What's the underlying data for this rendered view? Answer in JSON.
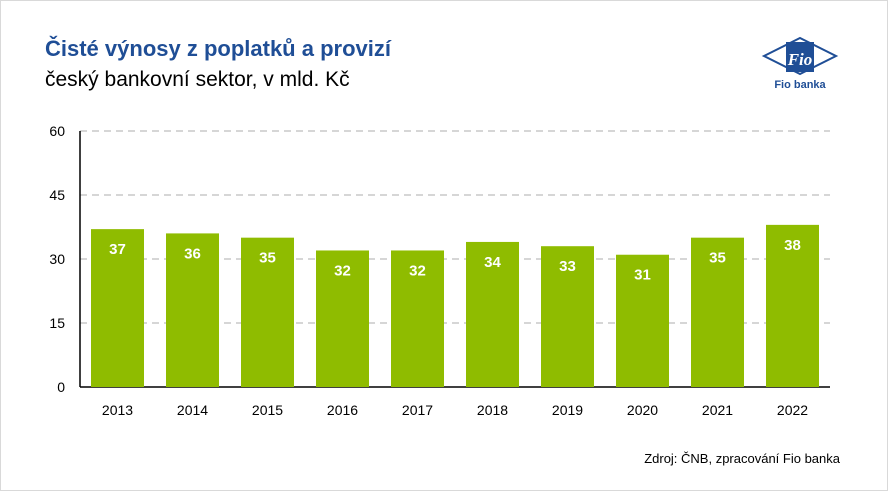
{
  "header": {
    "title": "Čisté výnosy z poplatků a provizí",
    "subtitle": "český bankovní sektor, v mld. Kč"
  },
  "logo": {
    "mark": "Fio",
    "name": "Fio banka",
    "icon": "fio-banka-logo-icon"
  },
  "footer": {
    "source": "Zdroj: ČNB, zpracování Fio banka"
  },
  "colors": {
    "bar": "#8fbc00",
    "title": "#1f4e96",
    "grid": "#c8c8c8"
  },
  "chart_data": {
    "type": "bar",
    "categories": [
      "2013",
      "2014",
      "2015",
      "2016",
      "2017",
      "2018",
      "2019",
      "2020",
      "2021",
      "2022"
    ],
    "values": [
      37,
      36,
      35,
      32,
      32,
      34,
      33,
      31,
      35,
      38
    ],
    "data_labels": [
      "37",
      "36",
      "35",
      "32",
      "32",
      "34",
      "33",
      "31",
      "35",
      "38"
    ],
    "ylim": [
      0,
      60
    ],
    "yticks": [
      0,
      15,
      30,
      45,
      60
    ],
    "grid": true,
    "legend": "none"
  }
}
